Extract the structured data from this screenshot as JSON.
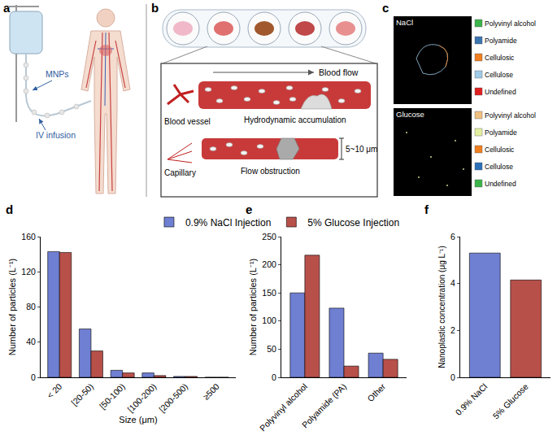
{
  "panel_a": {
    "letter": "a",
    "labels": [
      "MNPs",
      "IV infusion"
    ]
  },
  "panel_b": {
    "letter": "b",
    "blood_flow": "Blood flow",
    "blood_vessel": "Blood vessel",
    "accumulation": "Hydrodynamic accumulation",
    "capillary": "Capillary",
    "obstruction": "Flow obstruction",
    "diameter": "5~10 μm"
  },
  "panel_c": {
    "letter": "c",
    "images": [
      {
        "label": "NaCl",
        "legend": [
          {
            "name": "Polyvinyl alcohol",
            "color": "#3cb44b"
          },
          {
            "name": "Polyamide",
            "color": "#3a75b0"
          },
          {
            "name": "Cellulosic",
            "color": "#f07f20"
          },
          {
            "name": "Cellulose",
            "color": "#9fcbe8"
          },
          {
            "name": "Undefined",
            "color": "#e02020"
          }
        ]
      },
      {
        "label": "Glucose",
        "legend": [
          {
            "name": "Polyvinyl alcohol",
            "color": "#f0c080"
          },
          {
            "name": "Polyamide",
            "color": "#e4f0a0"
          },
          {
            "name": "Cellulosic",
            "color": "#f07f20"
          },
          {
            "name": "Cellulose",
            "color": "#2a70b8"
          },
          {
            "name": "Undefined",
            "color": "#3cb44b"
          }
        ]
      }
    ]
  },
  "chart_data": [
    {
      "panel": "d",
      "type": "bar",
      "x_label": "Size (μm)",
      "y_label": "Number of particles (L⁻¹)",
      "categories": [
        "< 20",
        "[20-50)",
        "[50-100)",
        "[100-200)",
        "[200-500)",
        "≥500"
      ],
      "series": [
        {
          "name": "0.9% NaCl Injection",
          "color": "#6f7fd2",
          "values": [
            143,
            55,
            8,
            5,
            1,
            0
          ]
        },
        {
          "name": "5% Glucose Injection",
          "color": "#b8504a",
          "values": [
            142,
            30,
            5,
            2,
            1,
            0
          ]
        }
      ],
      "ylim": [
        0,
        160
      ],
      "yticks": [
        0,
        40,
        80,
        120,
        160
      ],
      "grid": false,
      "legend": "top"
    },
    {
      "panel": "e",
      "type": "bar",
      "y_label": "Number of particles (L⁻¹)",
      "categories": [
        "Polyvinyl alcohol",
        "Polyamide (PA)",
        "Other"
      ],
      "series": [
        {
          "name": "0.9% NaCl Injection",
          "color": "#6f7fd2",
          "values": [
            150,
            123,
            43
          ]
        },
        {
          "name": "5% Glucose Injection",
          "color": "#b8504a",
          "values": [
            217,
            20,
            32
          ]
        }
      ],
      "ylim": [
        0,
        250
      ],
      "yticks": [
        0,
        50,
        100,
        150,
        200,
        250
      ],
      "grid": false
    },
    {
      "panel": "f",
      "type": "bar",
      "y_label": "Nanoplastic concentration (μg L⁻¹)",
      "categories": [
        "0.9% NaCl",
        "5% Glucose"
      ],
      "values": [
        5.3,
        4.15
      ],
      "colors": [
        "#6f7fd2",
        "#b8504a"
      ],
      "ylim": [
        0,
        6
      ],
      "yticks": [
        0,
        2,
        4,
        6
      ],
      "grid": false
    }
  ]
}
